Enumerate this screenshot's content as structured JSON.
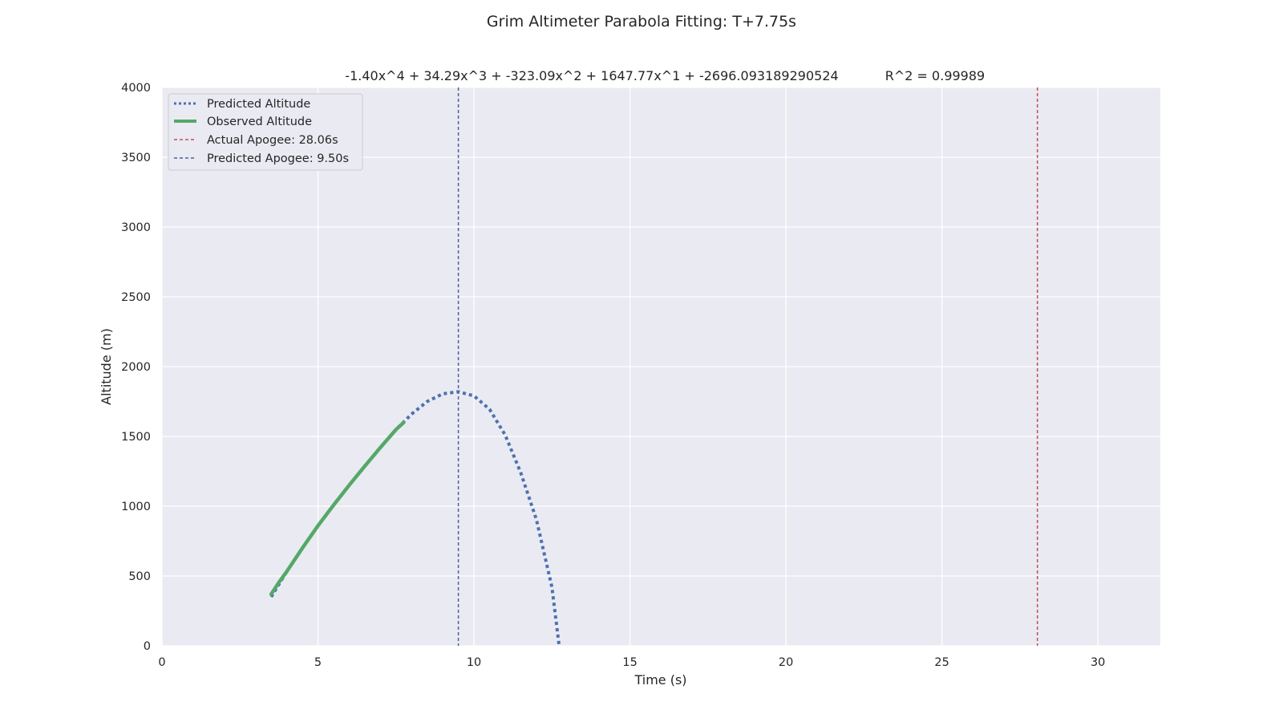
{
  "chart_data": {
    "type": "line",
    "title": "Grim Altimeter Parabola Fitting: T+7.75s",
    "subtitle_equation": "-1.40x^4 + 34.29x^3 + -323.09x^2 + 1647.77x^1 + -2696.093189290524",
    "subtitle_r2": "R^2 = 0.99989",
    "xlabel": "Time (s)",
    "ylabel": "Altitude (m)",
    "xlim": [
      0,
      32
    ],
    "ylim": [
      0,
      4000
    ],
    "x_ticks": [
      0,
      5,
      10,
      15,
      20,
      25,
      30
    ],
    "y_ticks": [
      0,
      500,
      1000,
      1500,
      2000,
      2500,
      3000,
      3500,
      4000
    ],
    "x_tick_labels": [
      "0",
      "5",
      "10",
      "15",
      "20",
      "25",
      "30"
    ],
    "y_tick_labels": [
      "0",
      "500",
      "1000",
      "1500",
      "2000",
      "2500",
      "3000",
      "3500",
      "4000"
    ],
    "grid": true,
    "legend_position": "top-left",
    "legend": [
      "Predicted Altitude",
      "Observed Altitude",
      "Actual Apogee: 28.06s",
      "Predicted Apogee: 9.50s"
    ],
    "series": [
      {
        "name": "Predicted Altitude",
        "style": "dotted",
        "color": "#4c72b0",
        "x": [
          3.5,
          4.0,
          4.5,
          5.0,
          5.5,
          6.0,
          6.5,
          7.0,
          7.5,
          8.0,
          8.5,
          9.0,
          9.5,
          10.0,
          10.5,
          11.0,
          11.5,
          12.0,
          12.5,
          12.73
        ],
        "y": [
          350,
          532,
          700,
          860,
          1008,
          1150,
          1287,
          1420,
          1549,
          1660,
          1750,
          1805,
          1820,
          1790,
          1695,
          1510,
          1240,
          905,
          420,
          0
        ]
      },
      {
        "name": "Observed Altitude",
        "style": "solid",
        "color": "#55a868",
        "x": [
          3.5,
          3.75,
          4.0,
          4.5,
          5.0,
          5.5,
          6.0,
          6.5,
          7.0,
          7.5,
          7.75
        ],
        "y": [
          370,
          455,
          532,
          700,
          860,
          1008,
          1150,
          1287,
          1420,
          1549,
          1600
        ]
      }
    ],
    "vlines": [
      {
        "name": "Actual Apogee: 28.06s",
        "x": 28.06,
        "color": "#c44e52",
        "style": "dashed"
      },
      {
        "name": "Predicted Apogee: 9.50s",
        "x": 9.5,
        "color": "#4c5fa0",
        "style": "dashed"
      }
    ],
    "colors": {
      "plot_background": "#eaeaf2",
      "grid": "#ffffff",
      "text": "#262626"
    }
  }
}
